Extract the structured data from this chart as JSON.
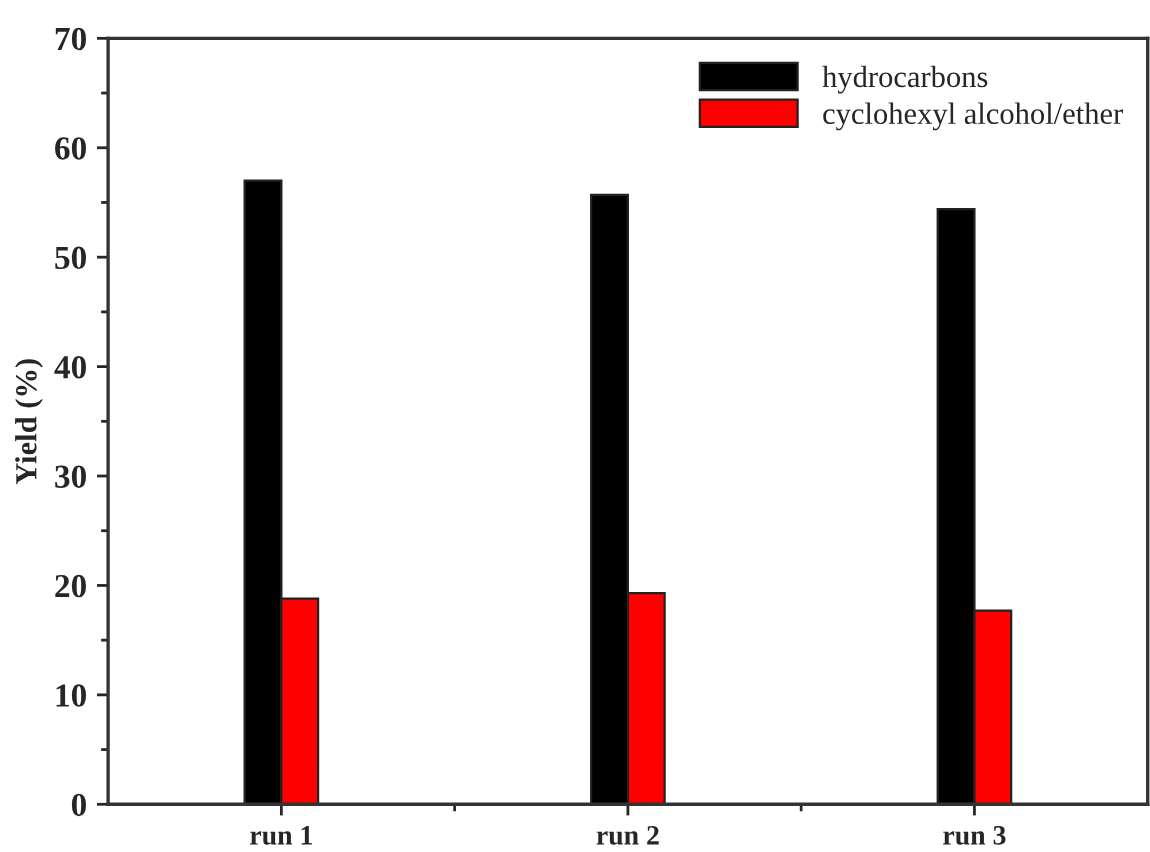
{
  "chart_data": {
    "type": "bar",
    "ylabel": "Yield (%)",
    "categories": [
      "run 1",
      "run 2",
      "run 3"
    ],
    "series": [
      {
        "name": "hydrocarbons",
        "color": "#000000",
        "values": [
          57.0,
          55.7,
          54.4
        ]
      },
      {
        "name": "cyclohexyl alcohol/ether",
        "color": "#ff0000",
        "values": [
          18.8,
          19.3,
          17.7
        ]
      }
    ],
    "ylim": [
      0,
      70
    ],
    "yticks": [
      0,
      {
        "value": 5,
        "label": null
      },
      10,
      {
        "value": 15,
        "label": null
      },
      20,
      {
        "value": 25,
        "label": null
      },
      30,
      {
        "value": 35,
        "label": null
      },
      40,
      {
        "value": 45,
        "label": null
      },
      50,
      {
        "value": 55,
        "label": null
      },
      60,
      {
        "value": 65,
        "label": null
      },
      70
    ],
    "grid": false,
    "legend": "top right"
  }
}
